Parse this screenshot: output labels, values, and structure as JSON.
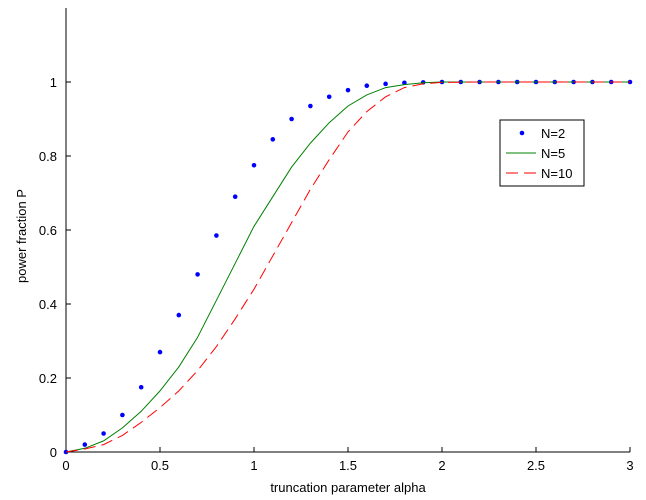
{
  "chart_data": {
    "type": "line",
    "title": "",
    "xlabel": "truncation parameter alpha",
    "ylabel": "power fraction P",
    "xlim": [
      0,
      3
    ],
    "ylim": [
      0,
      1.2
    ],
    "x_ticks": [
      0,
      0.5,
      1,
      1.5,
      2,
      2.5,
      3
    ],
    "x_tick_labels": [
      "0",
      "0.5",
      "1",
      "1.5",
      "2",
      "2.5",
      "3"
    ],
    "y_ticks": [
      0,
      0.2,
      0.4,
      0.6,
      0.8,
      1
    ],
    "y_tick_labels": [
      "0",
      "0.2",
      "0.4",
      "0.6",
      "0.8",
      "1"
    ],
    "grid": false,
    "legend_position": "right",
    "series": [
      {
        "name": "N=2",
        "style": "dots",
        "color": "#0000ff",
        "x": [
          0,
          0.1,
          0.2,
          0.3,
          0.4,
          0.5,
          0.6,
          0.7,
          0.8,
          0.9,
          1.0,
          1.1,
          1.2,
          1.3,
          1.4,
          1.5,
          1.6,
          1.7,
          1.8,
          1.9,
          2.0,
          2.1,
          2.2,
          2.3,
          2.4,
          2.5,
          2.6,
          2.7,
          2.8,
          2.9,
          3.0
        ],
        "y": [
          0,
          0.02,
          0.05,
          0.1,
          0.175,
          0.27,
          0.37,
          0.48,
          0.585,
          0.69,
          0.775,
          0.845,
          0.9,
          0.935,
          0.96,
          0.978,
          0.99,
          0.995,
          0.998,
          0.999,
          1,
          1,
          1,
          1,
          1,
          1,
          1,
          1,
          1,
          1,
          1
        ]
      },
      {
        "name": "N=5",
        "style": "solid",
        "color": "#008000",
        "x": [
          0,
          0.1,
          0.2,
          0.3,
          0.4,
          0.5,
          0.6,
          0.7,
          0.8,
          0.9,
          1.0,
          1.1,
          1.2,
          1.3,
          1.4,
          1.5,
          1.6,
          1.7,
          1.8,
          1.9,
          2.0,
          2.2,
          2.4,
          2.6,
          2.8,
          3.0
        ],
        "y": [
          0,
          0.01,
          0.03,
          0.065,
          0.11,
          0.165,
          0.23,
          0.31,
          0.41,
          0.51,
          0.61,
          0.69,
          0.77,
          0.835,
          0.89,
          0.935,
          0.965,
          0.985,
          0.993,
          0.998,
          1,
          1,
          1,
          1,
          1,
          1
        ]
      },
      {
        "name": "N=10",
        "style": "dashed",
        "color": "#ff0000",
        "x": [
          0,
          0.1,
          0.2,
          0.3,
          0.4,
          0.5,
          0.6,
          0.7,
          0.8,
          0.9,
          1.0,
          1.1,
          1.2,
          1.3,
          1.4,
          1.5,
          1.6,
          1.7,
          1.8,
          1.9,
          2.0,
          2.2,
          2.4,
          2.6,
          2.8,
          3.0
        ],
        "y": [
          0,
          0.008,
          0.02,
          0.045,
          0.08,
          0.12,
          0.165,
          0.22,
          0.285,
          0.36,
          0.44,
          0.53,
          0.62,
          0.71,
          0.79,
          0.865,
          0.92,
          0.96,
          0.985,
          0.995,
          0.999,
          1,
          1,
          1,
          1,
          1
        ]
      }
    ]
  }
}
